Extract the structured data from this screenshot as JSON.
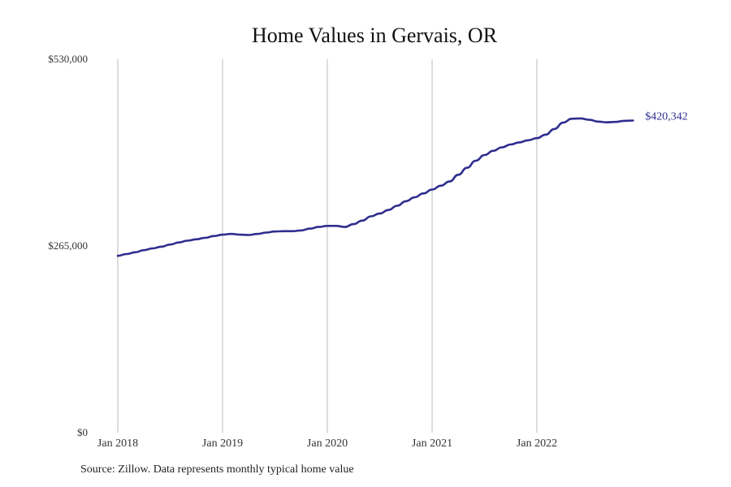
{
  "source_note": "Source: Zillow. Data represents monthly typical home value",
  "chart_data": {
    "type": "line",
    "title": "Home Values in Gervais, OR",
    "xlabel": "",
    "ylabel": "",
    "y_ticks": [
      "$530,000",
      "$265,000",
      "$0"
    ],
    "y_tick_values": [
      530000,
      265000,
      0
    ],
    "ylim": [
      0,
      530000
    ],
    "x_ticks": [
      "Jan 2018",
      "Jan 2019",
      "Jan 2020",
      "Jan 2021",
      "Jan 2022"
    ],
    "x_tick_dates": [
      "2018-01",
      "2019-01",
      "2020-01",
      "2021-01",
      "2022-01"
    ],
    "grid": "vertical",
    "line_color": "#2e2d8f",
    "grid_color": "#bbbbbb",
    "end_label": "$420,342",
    "series": [
      {
        "x": [
          "2018-01",
          "2018-02",
          "2018-03",
          "2018-04",
          "2018-05",
          "2018-06",
          "2018-07",
          "2018-08",
          "2018-09",
          "2018-10",
          "2018-11",
          "2018-12",
          "2019-01",
          "2019-02",
          "2019-03",
          "2019-04",
          "2019-05",
          "2019-06",
          "2019-07",
          "2019-08",
          "2019-09",
          "2019-10",
          "2019-11",
          "2019-12",
          "2020-01",
          "2020-02",
          "2020-03",
          "2020-04",
          "2020-05",
          "2020-06",
          "2020-07",
          "2020-08",
          "2020-09",
          "2020-10",
          "2020-11",
          "2020-12",
          "2021-01",
          "2021-02",
          "2021-03",
          "2021-04",
          "2021-05",
          "2021-06",
          "2021-07",
          "2021-08",
          "2021-09",
          "2021-10",
          "2021-11",
          "2021-12",
          "2022-01",
          "2022-02",
          "2022-03",
          "2022-04",
          "2022-05",
          "2022-06",
          "2022-07",
          "2022-08",
          "2022-09",
          "2022-10",
          "2022-11",
          "2022-12"
        ],
        "y": [
          251000,
          253500,
          256000,
          259000,
          261500,
          264000,
          267000,
          270000,
          272500,
          274500,
          276500,
          279000,
          281000,
          282000,
          281000,
          280500,
          282000,
          284000,
          285500,
          286000,
          286000,
          287000,
          289500,
          292000,
          293500,
          293500,
          292000,
          296000,
          301000,
          307000,
          311000,
          316000,
          322000,
          328500,
          334000,
          339500,
          345000,
          350500,
          356500,
          366000,
          376000,
          386000,
          394000,
          400000,
          405000,
          409000,
          412000,
          415000,
          418000,
          423000,
          431000,
          440000,
          445500,
          446000,
          444000,
          441500,
          440500,
          441000,
          442500,
          420342
        ]
      }
    ]
  }
}
